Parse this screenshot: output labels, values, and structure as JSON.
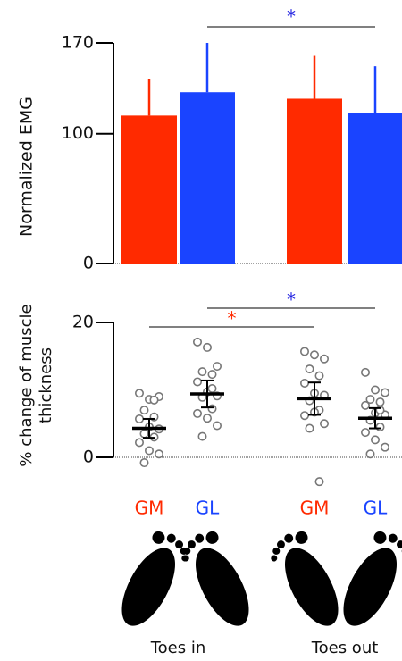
{
  "chart_data": [
    {
      "type": "bar",
      "ylabel": "Normalized EMG",
      "values": [
        114,
        132,
        127,
        116
      ],
      "errors": [
        28,
        38,
        33,
        36
      ],
      "colors": [
        "#ff2a00",
        "#1a44ff",
        "#ff2a00",
        "#1a44ff"
      ],
      "ylim": [
        0,
        170
      ],
      "yticks": [
        0,
        100,
        170
      ],
      "annotations": [
        {
          "text": "*",
          "color": "#2020e0"
        }
      ]
    },
    {
      "type": "dotplot",
      "ylabel": [
        "% change of muscle",
        "thickness"
      ],
      "categories": [
        "GM",
        "GL",
        "GM",
        "GL"
      ],
      "category_colors": [
        "#ff2a00",
        "#1a44ff",
        "#ff2a00",
        "#1a44ff"
      ],
      "groups": [
        "Toes in",
        "Toes out"
      ],
      "points": [
        [
          9.5,
          8.6,
          9,
          7,
          6,
          5.7,
          4.5,
          4.2,
          3.5,
          3,
          2.2,
          1,
          0.5,
          -0.8,
          8.5
        ],
        [
          17.1,
          16.3,
          13.5,
          12.7,
          12.3,
          11.2,
          9.7,
          9.1,
          8.9,
          7.2,
          6.5,
          5.8,
          4.7,
          3.1,
          10.2
        ],
        [
          15.7,
          15.2,
          14.6,
          13.1,
          12.1,
          11,
          9.5,
          9.2,
          8.4,
          7,
          6.2,
          6.7,
          5,
          4.3,
          -3.6
        ],
        [
          12.6,
          10,
          9.6,
          8.6,
          8.2,
          7.7,
          6.6,
          6.3,
          5.5,
          4.5,
          3.7,
          2.6,
          1.5,
          0.5,
          7
        ]
      ],
      "means": [
        4.3,
        9.4,
        8.7,
        5.8
      ],
      "errors": [
        1.4,
        2,
        2.4,
        1.5
      ],
      "ylim": [
        0,
        20
      ],
      "yticks": [
        0,
        20
      ],
      "annotations": [
        {
          "text": "*",
          "color": "#ff2a00"
        },
        {
          "text": "*",
          "color": "#2020e0"
        }
      ]
    }
  ]
}
